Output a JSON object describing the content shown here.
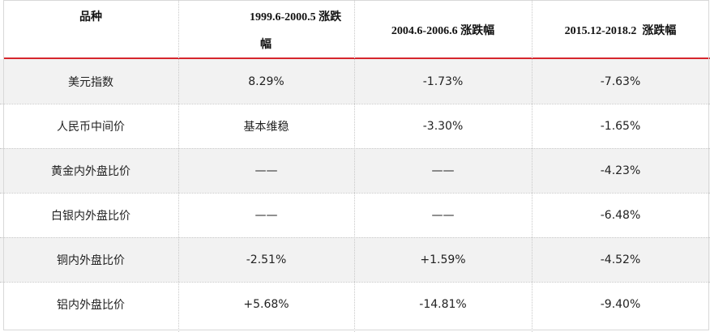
{
  "table": {
    "headers": [
      "品种",
      "1999.6-2000.5 涨跌幅",
      "2004.6-2006.6 涨跌幅",
      "2015.12-2018.2  涨跌幅"
    ],
    "header_line1": "1999.6-2000.5 涨跌",
    "header_line2": "幅",
    "rows": [
      [
        "美元指数",
        "8.29%",
        "-1.73%",
        "-7.63%"
      ],
      [
        "人民币中间价",
        "基本维稳",
        "-3.30%",
        "-1.65%"
      ],
      [
        "黄金内外盘比价",
        "——",
        "——",
        "-4.23%"
      ],
      [
        "白银内外盘比价",
        "——",
        "——",
        "-6.48%"
      ],
      [
        "铜内外盘比价",
        "-2.51%",
        "+1.59%",
        "-4.52%"
      ],
      [
        "铝内外盘比价",
        "+5.68%",
        "-14.81%",
        "-9.40%"
      ]
    ]
  },
  "colors": {
    "accent_line": "#d6262d",
    "shaded_row": "#f2f2f2"
  }
}
